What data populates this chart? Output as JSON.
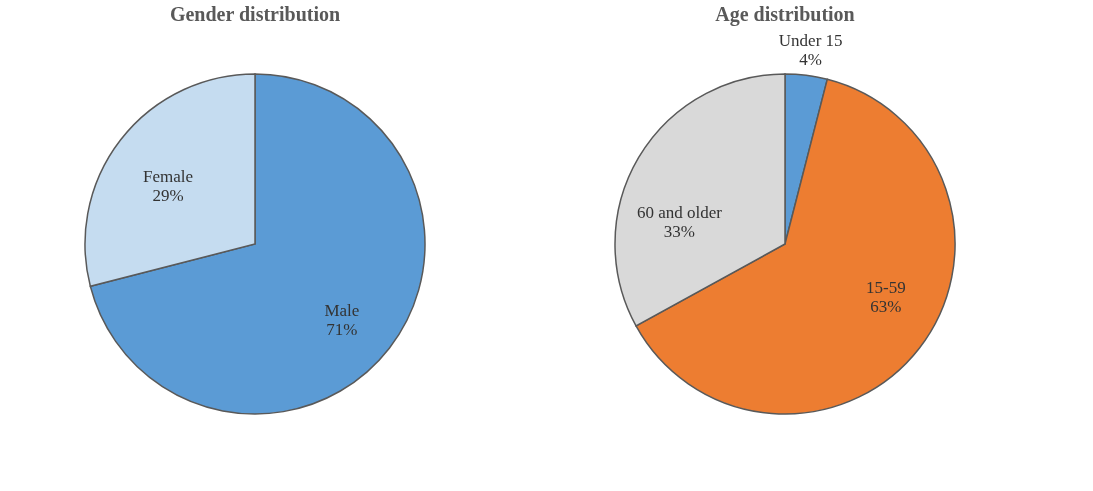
{
  "chart_data": [
    {
      "type": "pie",
      "title": "Gender distribution",
      "categories": [
        "Male",
        "Female"
      ],
      "values": [
        71,
        29
      ],
      "colors": [
        "#5b9bd5",
        "#c5dcf0"
      ],
      "value_labels": [
        "71%",
        "29%"
      ],
      "legend": false
    },
    {
      "type": "pie",
      "title": "Age distribution",
      "categories": [
        "Under 15",
        "15-59",
        "60 and older"
      ],
      "values": [
        4,
        63,
        33
      ],
      "colors": [
        "#5b9bd5",
        "#ed7d31",
        "#d9d9d9"
      ],
      "value_labels": [
        "4%",
        "63%",
        "33%"
      ],
      "legend": false
    }
  ]
}
